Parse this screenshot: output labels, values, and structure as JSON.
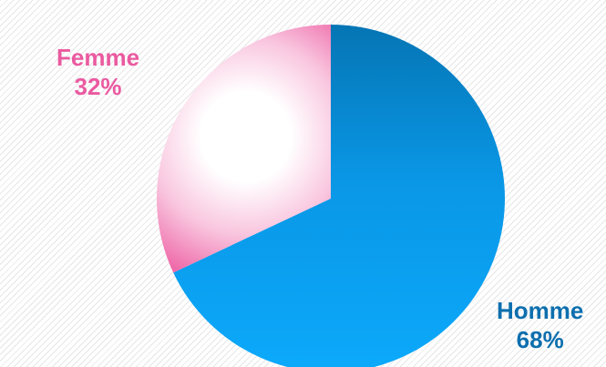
{
  "chart_data": {
    "type": "pie",
    "title": "",
    "start_angle_deg": 0,
    "direction": "clockwise",
    "slices": [
      {
        "label": "Homme",
        "value": 68,
        "value_label": "68%",
        "color": "#0ba3f5",
        "label_color": "#0d6fae"
      },
      {
        "label": "Femme",
        "value": 32,
        "value_label": "32%",
        "color": "#f07ab2",
        "label_color": "#ea5aa0"
      }
    ]
  }
}
